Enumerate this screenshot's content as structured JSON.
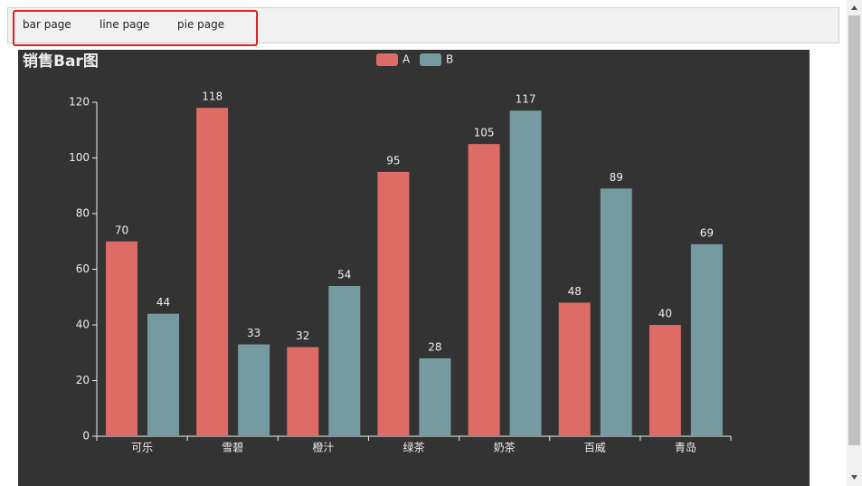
{
  "nav": {
    "tabs": [
      "bar page",
      "line page",
      "pie page"
    ]
  },
  "chart_data": {
    "type": "bar",
    "title": "销售Bar图",
    "categories": [
      "可乐",
      "雪碧",
      "橙汁",
      "绿茶",
      "奶茶",
      "百威",
      "青岛"
    ],
    "series": [
      {
        "name": "A",
        "color": "#dd6b66",
        "values": [
          70,
          118,
          32,
          95,
          105,
          48,
          40
        ]
      },
      {
        "name": "B",
        "color": "#759aa0",
        "values": [
          44,
          33,
          54,
          28,
          117,
          89,
          69
        ]
      }
    ],
    "ylim": [
      0,
      120
    ],
    "yticks": [
      0,
      20,
      40,
      60,
      80,
      100,
      120
    ],
    "grid": false,
    "legend": "top"
  }
}
